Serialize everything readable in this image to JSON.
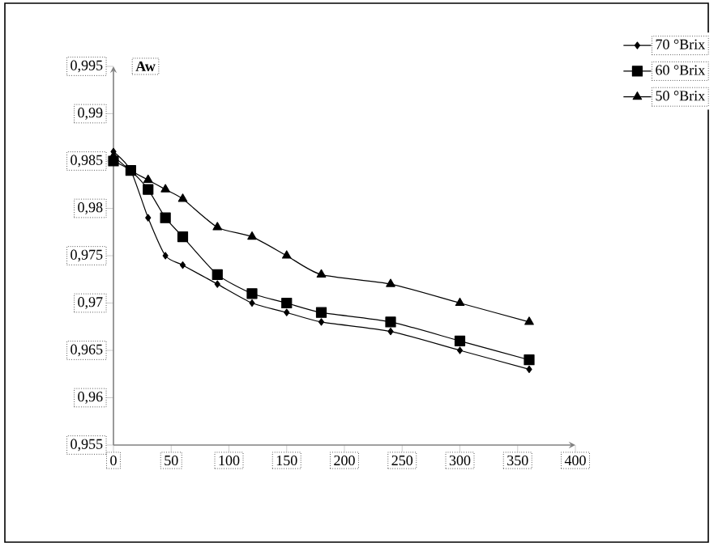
{
  "chart_data": {
    "type": "line",
    "ylabel": "Aw",
    "x": [
      0,
      15,
      30,
      45,
      60,
      90,
      120,
      150,
      180,
      240,
      300,
      360
    ],
    "series": [
      {
        "name": "70 °Brix",
        "color": "#000000",
        "marker": "diamond",
        "values": [
          0.986,
          0.984,
          0.979,
          0.975,
          0.974,
          0.972,
          0.97,
          0.969,
          0.968,
          0.967,
          0.965,
          0.963
        ]
      },
      {
        "name": "60 °Brix",
        "color": "#000000",
        "marker": "square",
        "values": [
          0.985,
          0.984,
          0.982,
          0.979,
          0.977,
          0.973,
          0.971,
          0.97,
          0.969,
          0.968,
          0.966,
          0.964
        ]
      },
      {
        "name": "50 °Brix",
        "color": "#000000",
        "marker": "triangle",
        "values": [
          0.9855,
          0.984,
          0.983,
          0.982,
          0.981,
          0.978,
          0.977,
          0.975,
          0.973,
          0.972,
          0.97,
          0.968
        ]
      }
    ],
    "xlim": [
      0,
      400
    ],
    "xticks": [
      0,
      50,
      100,
      150,
      200,
      250,
      300,
      350,
      400
    ],
    "ylim": [
      0.955,
      0.995
    ],
    "yticks": [
      {
        "value": 0.955,
        "label": "0,955"
      },
      {
        "value": 0.96,
        "label": "0,96"
      },
      {
        "value": 0.965,
        "label": "0,965"
      },
      {
        "value": 0.97,
        "label": "0,97"
      },
      {
        "value": 0.975,
        "label": "0,975"
      },
      {
        "value": 0.98,
        "label": "0,98"
      },
      {
        "value": 0.985,
        "label": "0,985"
      },
      {
        "value": 0.99,
        "label": "0,99"
      },
      {
        "value": 0.995,
        "label": "0,995"
      }
    ],
    "grid": false,
    "legend": "top right",
    "line_style": "solid"
  }
}
